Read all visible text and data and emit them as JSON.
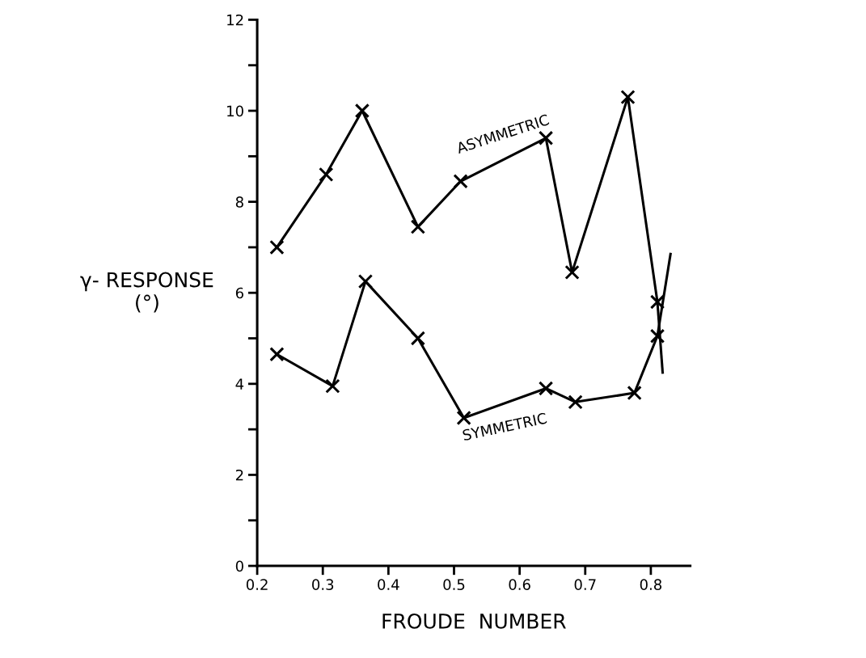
{
  "chart_data": {
    "type": "line",
    "xlabel": "FROUDE  NUMBER",
    "ylabel": "γ- RESPONSE\n(°)",
    "xlim": [
      0.2,
      0.86
    ],
    "xticks": [
      0.2,
      0.3,
      0.4,
      0.5,
      0.6,
      0.7,
      0.8
    ],
    "ylim": [
      0,
      12
    ],
    "yticks": [
      0,
      {
        "value": 1,
        "label": null
      },
      2,
      {
        "value": 3,
        "label": null
      },
      4,
      {
        "value": 5,
        "label": null
      },
      6,
      {
        "value": 7,
        "label": null
      },
      8,
      {
        "value": 9,
        "label": null
      },
      10,
      {
        "value": 11,
        "label": null
      },
      12
    ],
    "grid": false,
    "marker": "cross",
    "line_style": "solid",
    "series": [
      {
        "name": "ASYMMETRIC",
        "color": "#000000",
        "x": [
          0.23,
          0.305,
          0.36,
          0.445,
          0.51,
          0.64,
          0.68,
          0.765,
          0.81
        ],
        "values": [
          7.0,
          8.6,
          10.0,
          7.45,
          8.45,
          9.4,
          6.45,
          10.3,
          5.8
        ]
      },
      {
        "name": "SYMMETRIC",
        "color": "#000000",
        "x": [
          0.23,
          0.315,
          0.365,
          0.445,
          0.515,
          0.64,
          0.685,
          0.775,
          0.81
        ],
        "values": [
          4.65,
          3.95,
          6.25,
          5.0,
          3.25,
          3.9,
          3.6,
          3.8,
          5.05
        ]
      },
      {
        "color": "#000000",
        "marker": "none",
        "x": [
          0.81,
          0.818
        ],
        "values": [
          5.8,
          4.25
        ]
      },
      {
        "color": "#000000",
        "marker": "none",
        "x": [
          0.81,
          0.83
        ],
        "values": [
          5.05,
          6.85
        ]
      }
    ]
  }
}
